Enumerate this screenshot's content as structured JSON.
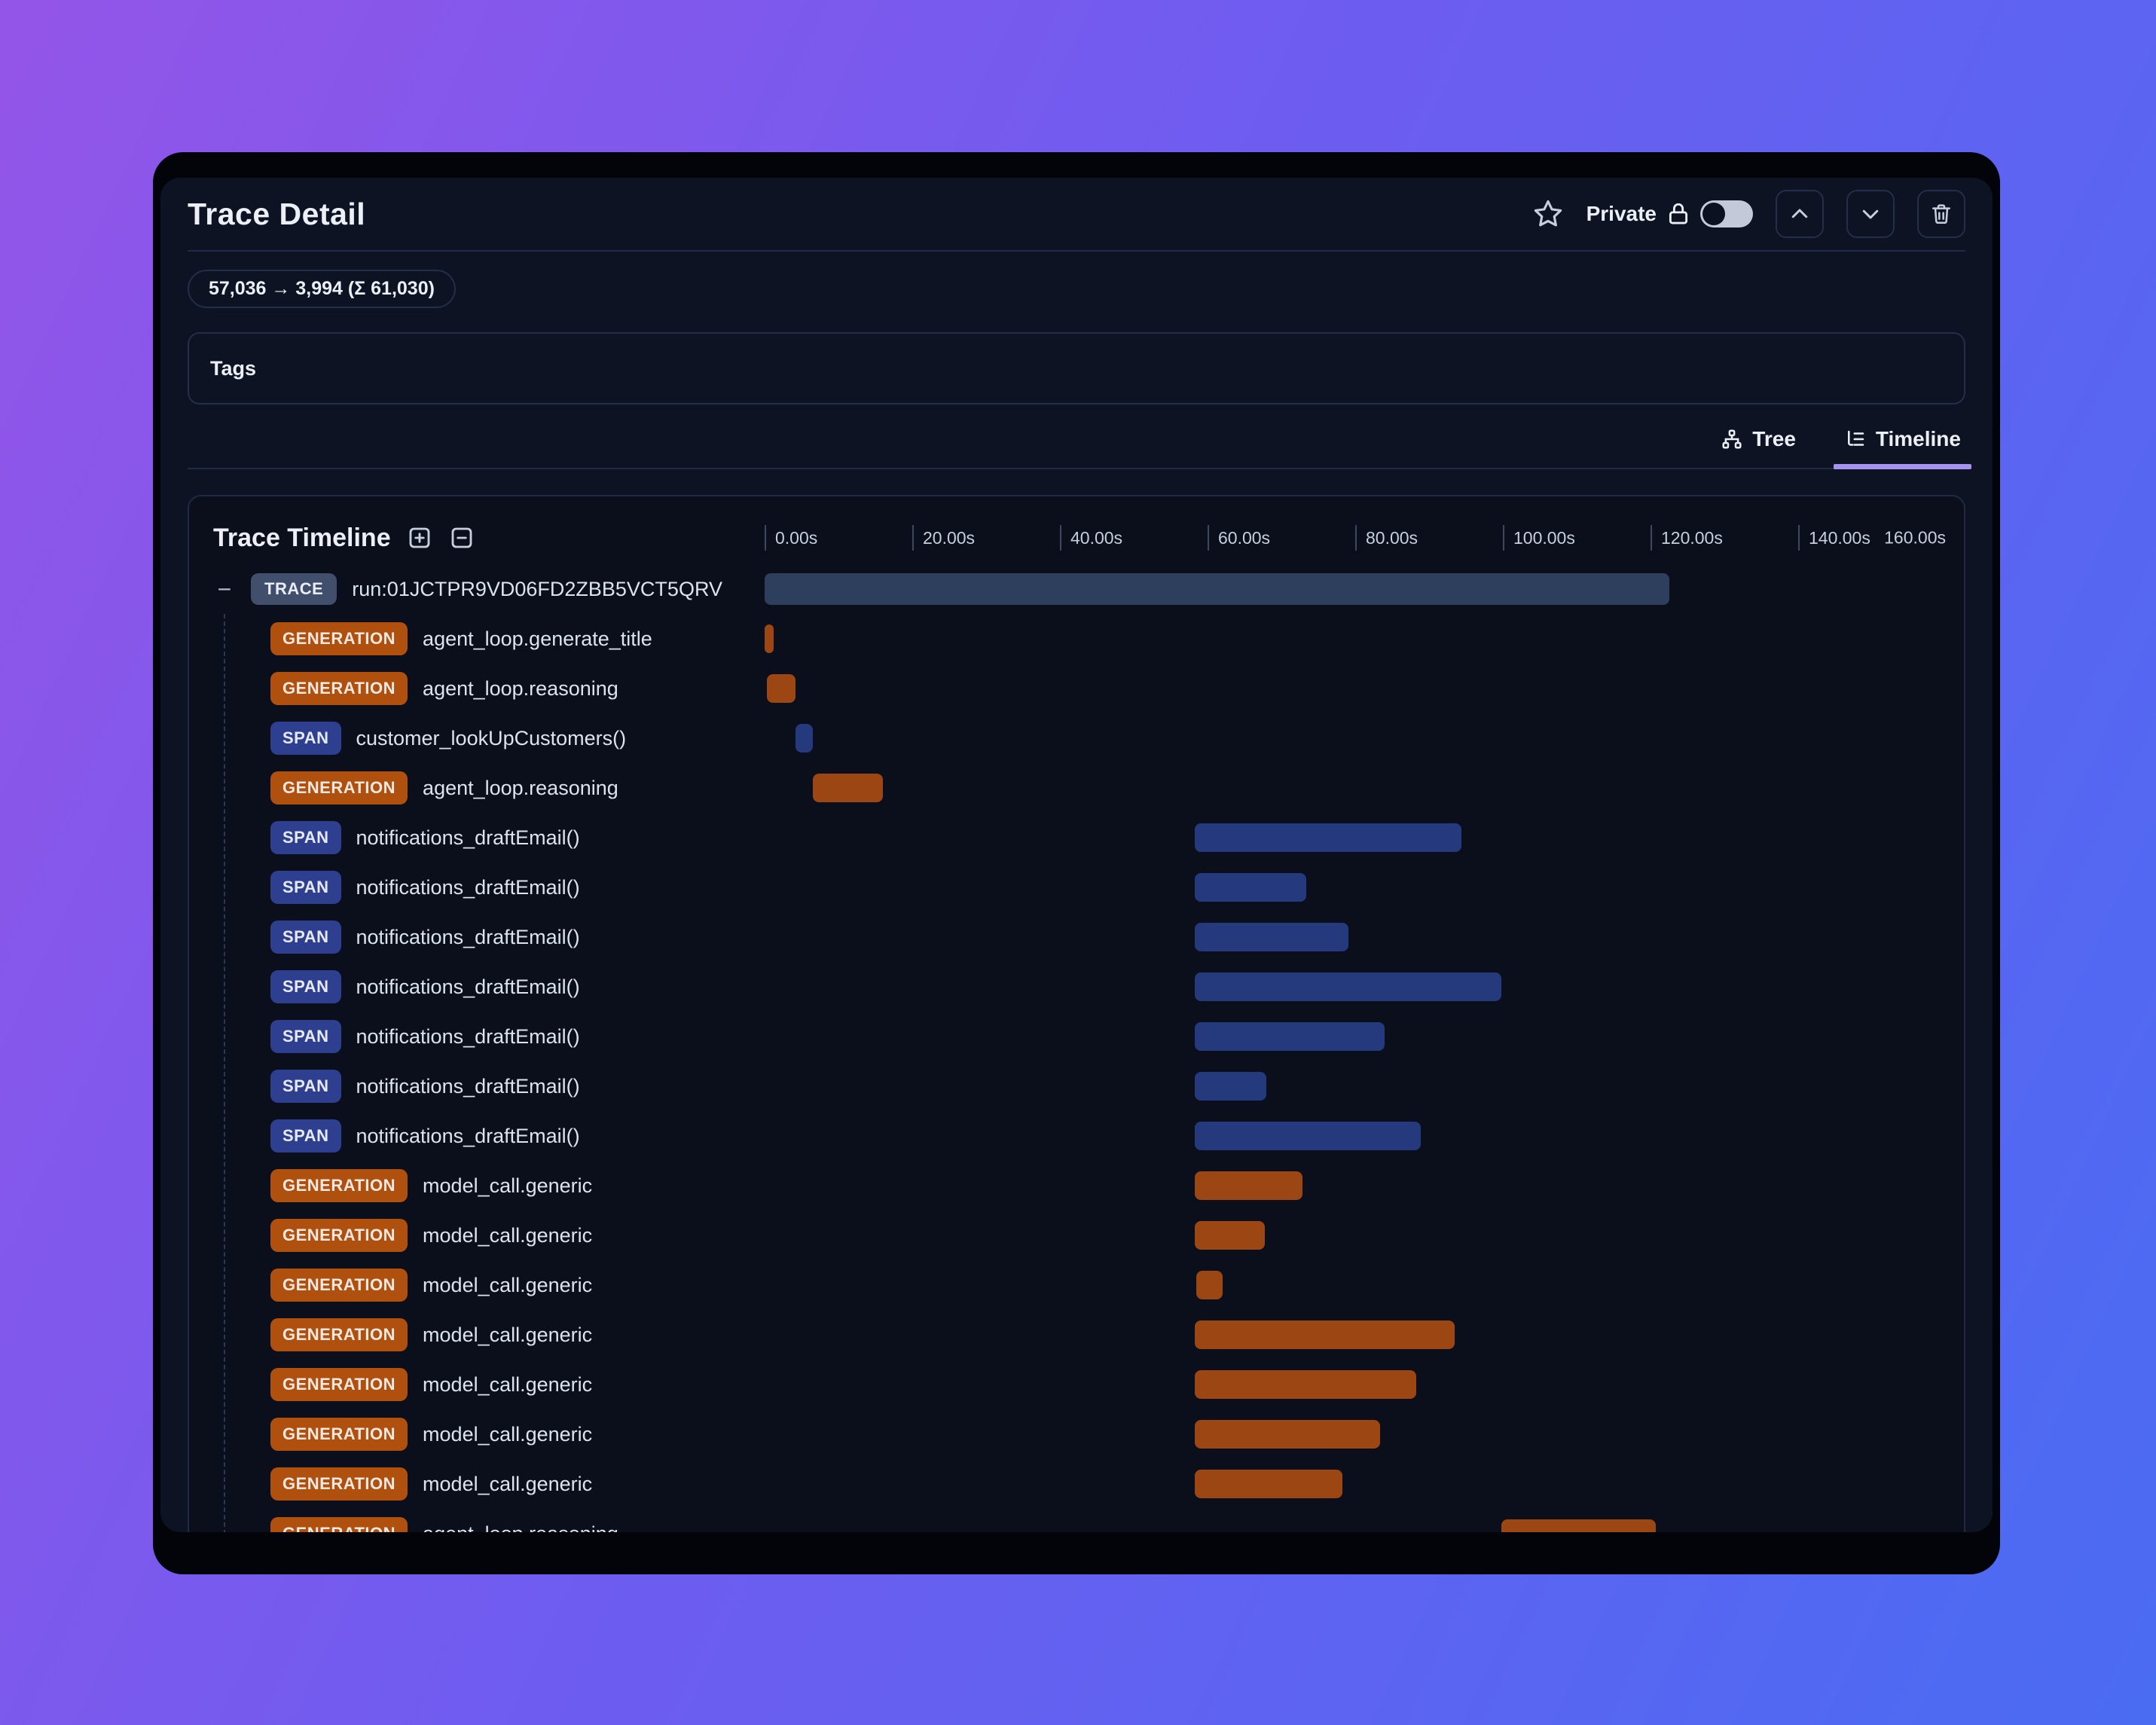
{
  "header": {
    "title": "Trace Detail",
    "privacy_label": "Private",
    "privacy_toggle": "off"
  },
  "token_usage": "57,036 → 3,994 (Σ 61,030)",
  "tags": {
    "label": "Tags"
  },
  "tabs": [
    {
      "label": "Tree",
      "active": false
    },
    {
      "label": "Timeline",
      "active": true
    }
  ],
  "timeline": {
    "title": "Trace Timeline",
    "axis": {
      "min_s": 0,
      "max_s": 160,
      "step_s": 20,
      "ticks": [
        "0.00s",
        "20.00s",
        "40.00s",
        "60.00s",
        "80.00s",
        "100.00s",
        "120.00s",
        "140.00s",
        "160.00s"
      ]
    },
    "rows": [
      {
        "type": "TRACE",
        "label": "run:01JCTPR9VD06FD2ZBB5VCT5QRV",
        "start_s": 0,
        "end_s": 122.5,
        "collapsible": true
      },
      {
        "type": "GENERATION",
        "label": "agent_loop.generate_title",
        "start_s": 0,
        "end_s": 1.2
      },
      {
        "type": "GENERATION",
        "label": "agent_loop.reasoning",
        "start_s": 0.3,
        "end_s": 4.2
      },
      {
        "type": "SPAN",
        "label": "customer_lookUpCustomers()",
        "start_s": 4.2,
        "end_s": 6.5
      },
      {
        "type": "GENERATION",
        "label": "agent_loop.reasoning",
        "start_s": 6.5,
        "end_s": 16.0
      },
      {
        "type": "SPAN",
        "label": "notifications_draftEmail()",
        "start_s": 58.3,
        "end_s": 94.4
      },
      {
        "type": "SPAN",
        "label": "notifications_draftEmail()",
        "start_s": 58.3,
        "end_s": 73.4
      },
      {
        "type": "SPAN",
        "label": "notifications_draftEmail()",
        "start_s": 58.3,
        "end_s": 79.1
      },
      {
        "type": "SPAN",
        "label": "notifications_draftEmail()",
        "start_s": 58.3,
        "end_s": 99.8
      },
      {
        "type": "SPAN",
        "label": "notifications_draftEmail()",
        "start_s": 58.3,
        "end_s": 84.0
      },
      {
        "type": "SPAN",
        "label": "notifications_draftEmail()",
        "start_s": 58.3,
        "end_s": 68.0
      },
      {
        "type": "SPAN",
        "label": "notifications_draftEmail()",
        "start_s": 58.3,
        "end_s": 88.9
      },
      {
        "type": "GENERATION",
        "label": "model_call.generic",
        "start_s": 58.3,
        "end_s": 72.9
      },
      {
        "type": "GENERATION",
        "label": "model_call.generic",
        "start_s": 58.3,
        "end_s": 67.8
      },
      {
        "type": "GENERATION",
        "label": "model_call.generic",
        "start_s": 58.5,
        "end_s": 62.0
      },
      {
        "type": "GENERATION",
        "label": "model_call.generic",
        "start_s": 58.3,
        "end_s": 93.5
      },
      {
        "type": "GENERATION",
        "label": "model_call.generic",
        "start_s": 58.3,
        "end_s": 88.3
      },
      {
        "type": "GENERATION",
        "label": "model_call.generic",
        "start_s": 58.3,
        "end_s": 83.4
      },
      {
        "type": "GENERATION",
        "label": "model_call.generic",
        "start_s": 58.3,
        "end_s": 78.3
      },
      {
        "type": "GENERATION",
        "label": "agent_loop.reasoning",
        "start_s": 99.8,
        "end_s": 120.7
      }
    ]
  },
  "icons": {
    "header": [
      "star-icon",
      "lock-icon",
      "chevron-up-icon",
      "chevron-down-icon",
      "trash-icon"
    ],
    "tabs": [
      "tree-icon",
      "list-tree-icon"
    ],
    "panel": [
      "plus-square-icon",
      "minus-square-icon"
    ]
  },
  "colors": {
    "accent_underline": "#a791f0",
    "trace_badge": "#414f6d",
    "trace_bar": "#2e3e5d",
    "span_badge": "#2f3f8f",
    "span_bar": "#253a7c",
    "generation_badge": "#b0500e",
    "generation_bar": "#9c4614",
    "background_gradient": [
      "#9355e8",
      "#6e5cf0",
      "#4a6cf2"
    ],
    "app_background": "#0d1322"
  }
}
